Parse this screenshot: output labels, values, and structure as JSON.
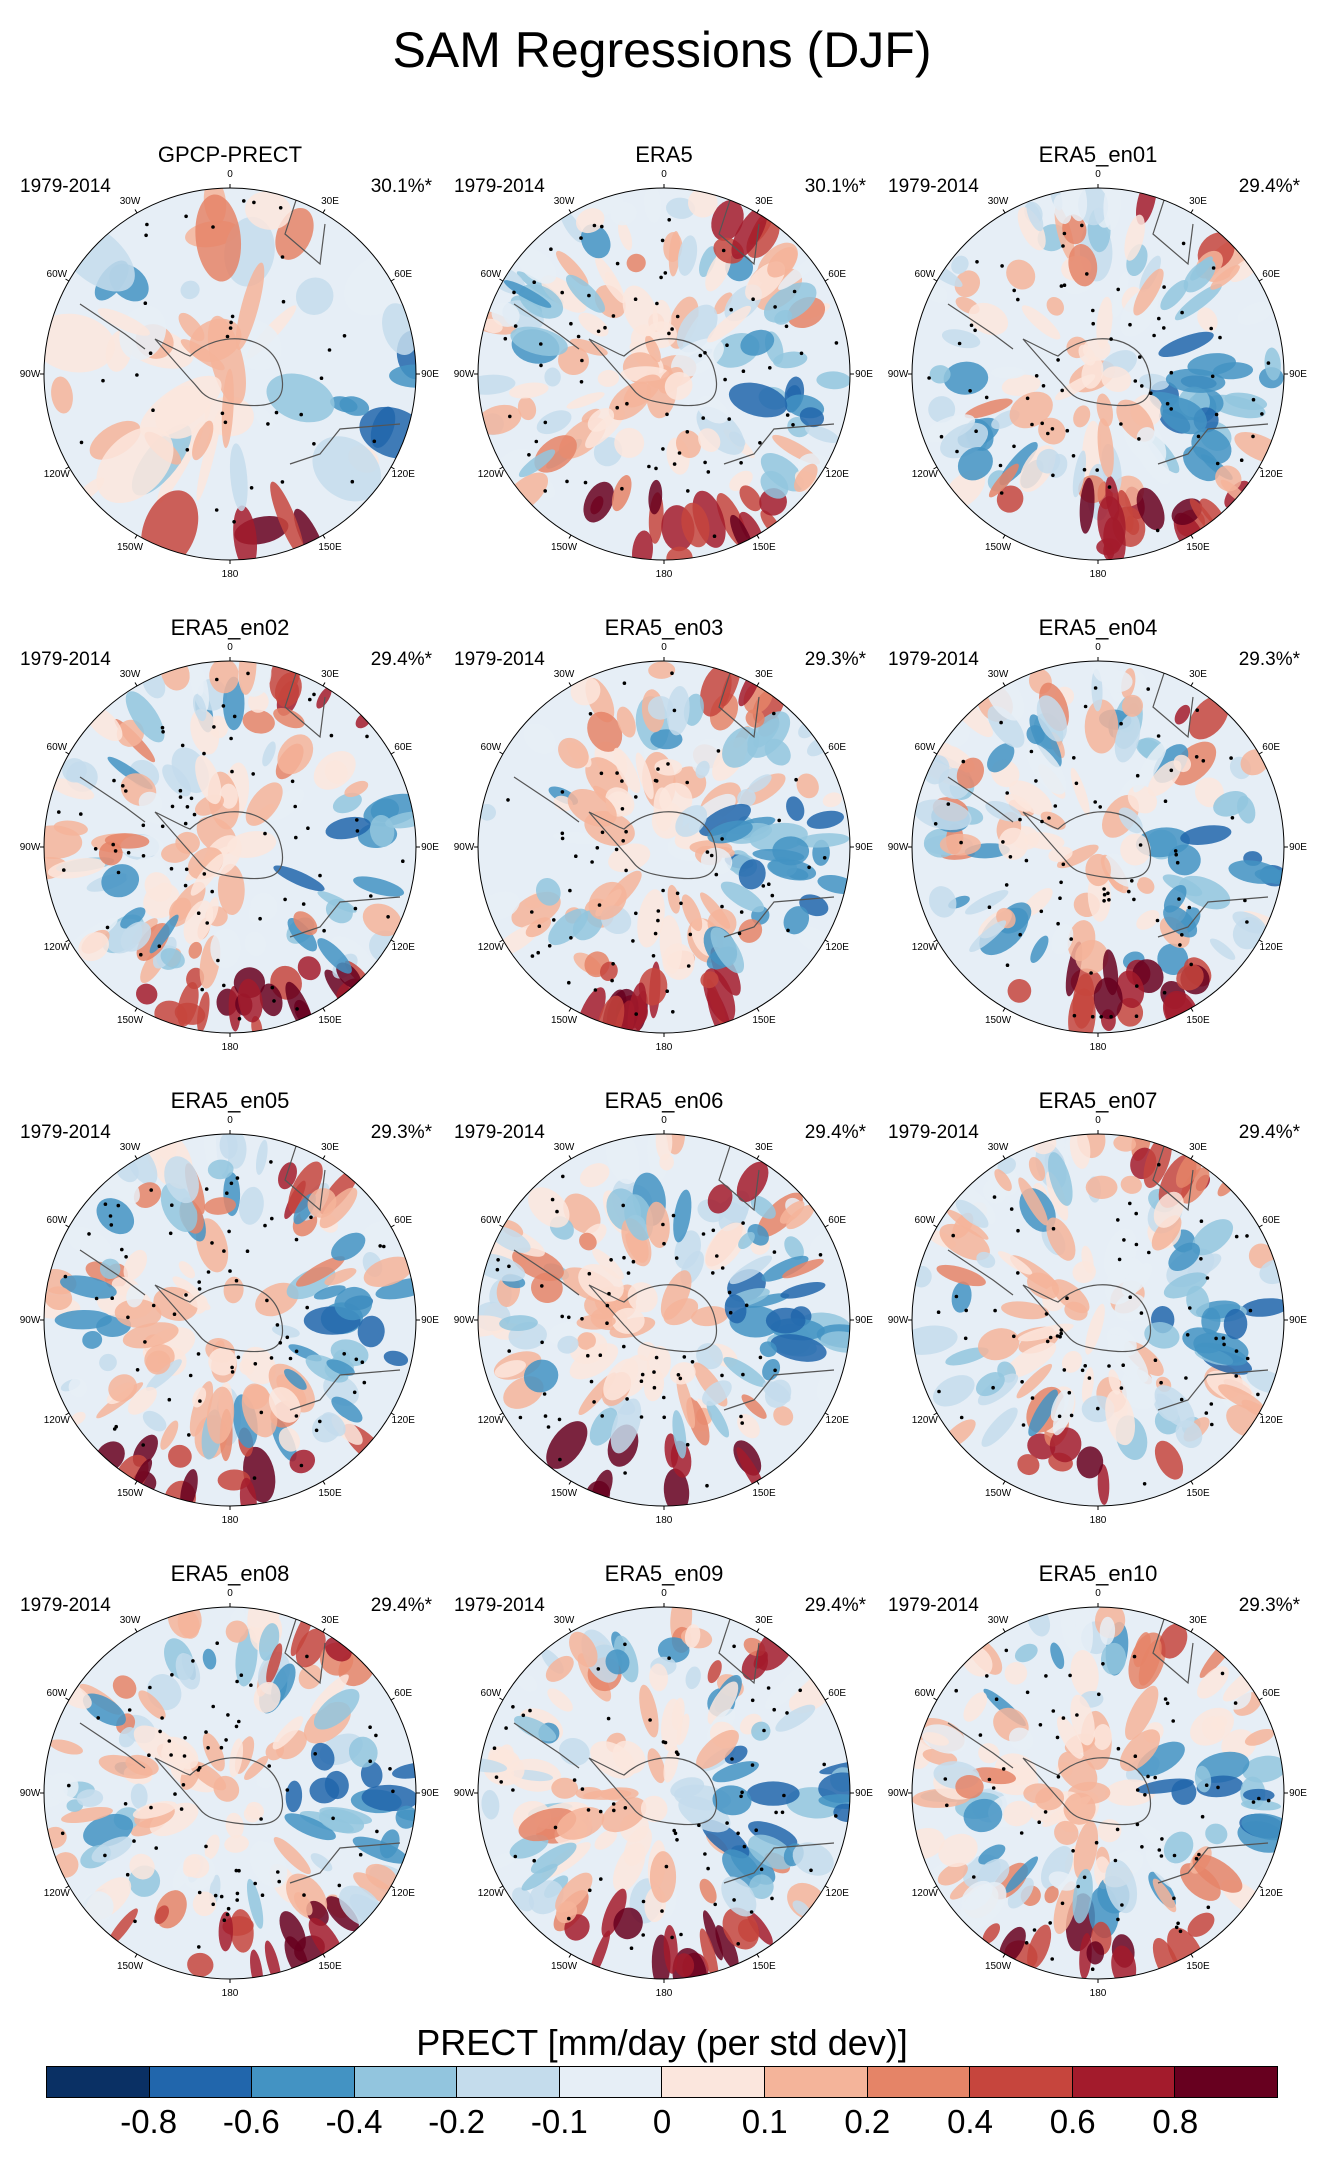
{
  "title": "SAM Regressions (DJF)",
  "panels": [
    {
      "name": "GPCP-PRECT",
      "period": "1979-2014",
      "percent": "30.1%*"
    },
    {
      "name": "ERA5",
      "period": "1979-2014",
      "percent": "30.1%*"
    },
    {
      "name": "ERA5_en01",
      "period": "1979-2014",
      "percent": "29.4%*"
    },
    {
      "name": "ERA5_en02",
      "period": "1979-2014",
      "percent": "29.4%*"
    },
    {
      "name": "ERA5_en03",
      "period": "1979-2014",
      "percent": "29.3%*"
    },
    {
      "name": "ERA5_en04",
      "period": "1979-2014",
      "percent": "29.3%*"
    },
    {
      "name": "ERA5_en05",
      "period": "1979-2014",
      "percent": "29.3%*"
    },
    {
      "name": "ERA5_en06",
      "period": "1979-2014",
      "percent": "29.4%*"
    },
    {
      "name": "ERA5_en07",
      "period": "1979-2014",
      "percent": "29.4%*"
    },
    {
      "name": "ERA5_en08",
      "period": "1979-2014",
      "percent": "29.4%*"
    },
    {
      "name": "ERA5_en09",
      "period": "1979-2014",
      "percent": "29.4%*"
    },
    {
      "name": "ERA5_en10",
      "period": "1979-2014",
      "percent": "29.3%*"
    }
  ],
  "longitude_labels": [
    "0",
    "30E",
    "60E",
    "90E",
    "120E",
    "150E",
    "180",
    "150W",
    "120W",
    "90W",
    "60W",
    "30W"
  ],
  "colorbar": {
    "title": "PRECT [mm/day (per std dev)]",
    "ticks": [
      "-0.8",
      "-0.6",
      "-0.4",
      "-0.2",
      "-0.1",
      "0",
      "0.1",
      "0.2",
      "0.4",
      "0.6",
      "0.8"
    ],
    "colors": [
      "#0a3064",
      "#2166ac",
      "#4393c3",
      "#92c5de",
      "#c4dcec",
      "#e6eef6",
      "#fbe6dd",
      "#f4b49a",
      "#e58467",
      "#c6453d",
      "#a31b2c",
      "#67001f"
    ]
  }
}
